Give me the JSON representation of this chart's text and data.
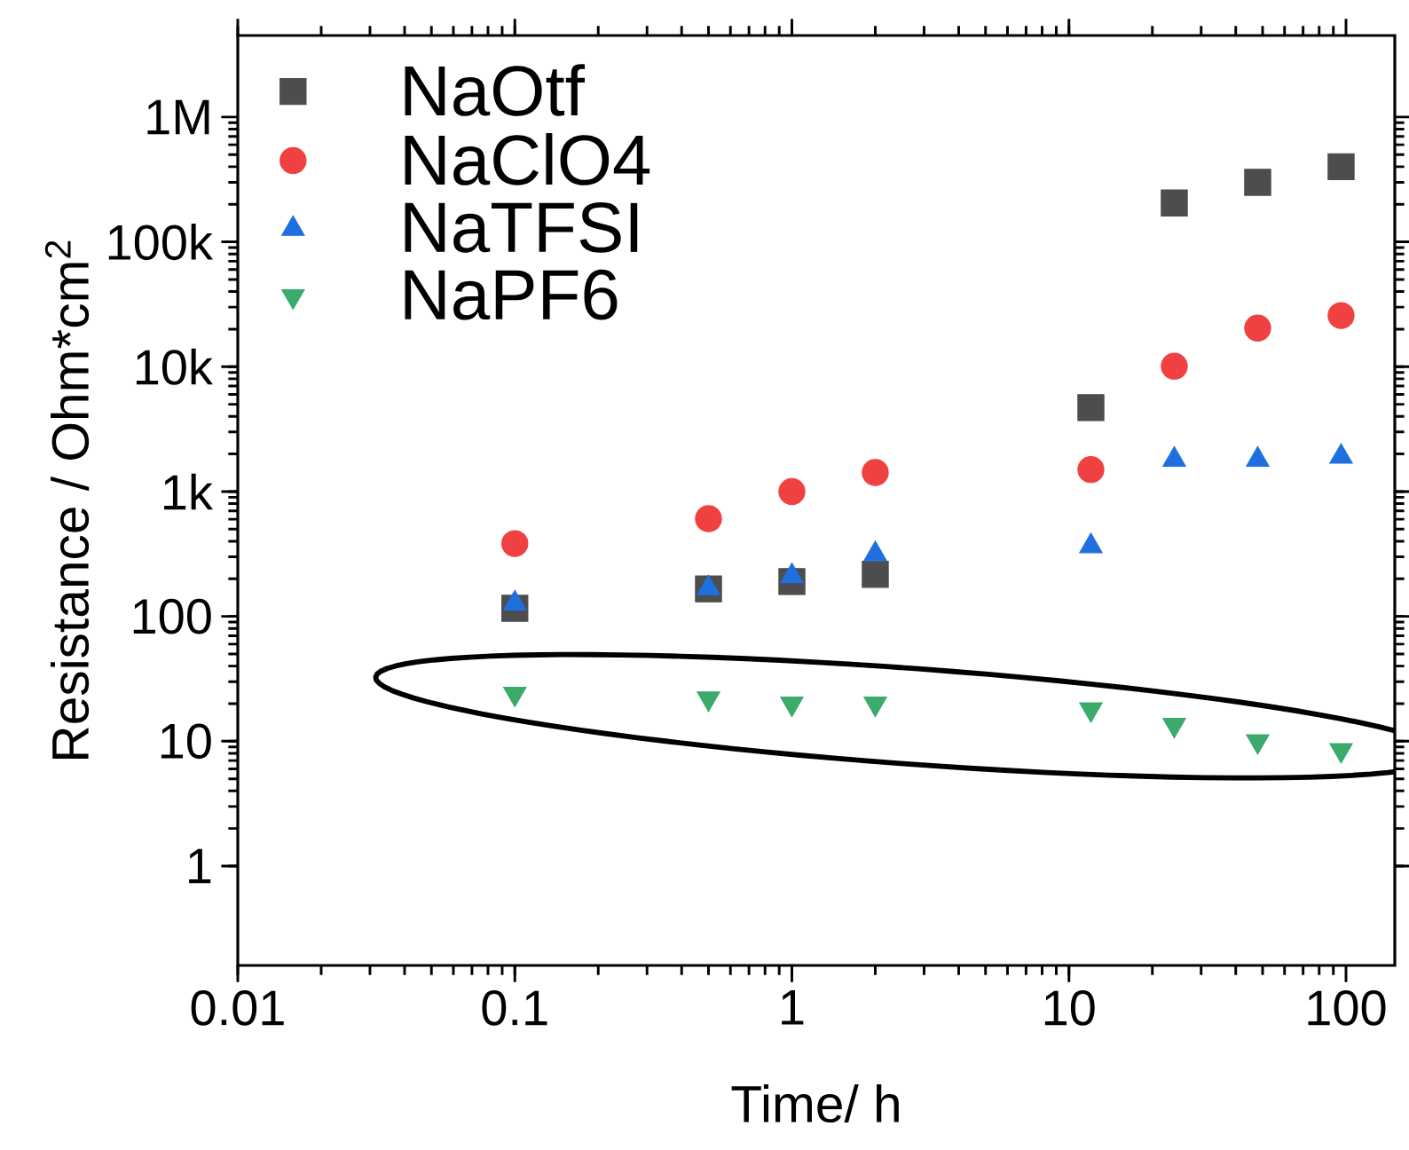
{
  "chart_data": {
    "type": "scatter",
    "xlabel": "Time/ h",
    "ylabel": "Resistance / Ohm*cm$^{2}$",
    "x": [
      0.1,
      0.5,
      1,
      2,
      12,
      24,
      48,
      96
    ],
    "series": [
      {
        "name": "NaOtf",
        "color": "#4d4d4d",
        "marker": "square",
        "values": [
          116,
          166,
          190,
          217,
          4700,
          205000,
          300000,
          400000
        ]
      },
      {
        "name": "NaClO4",
        "color": "#ef4141",
        "marker": "circle",
        "values": [
          383,
          606,
          1000,
          1420,
          1500,
          10100,
          20400,
          25700
        ]
      },
      {
        "name": "NaTFSI",
        "color": "#1f6fdf",
        "marker": "triangle",
        "values": [
          127,
          168,
          210,
          315,
          365,
          1800,
          1800,
          1900
        ]
      },
      {
        "name": "NaPF6",
        "color": "#3aab6b",
        "marker": "triangle-down",
        "values": [
          24,
          22,
          20,
          20,
          18,
          13.5,
          10,
          8.5
        ]
      }
    ],
    "log": "xy",
    "xlim": [
      0.01,
      150
    ],
    "ylim": [
      0.16,
      4500000
    ],
    "xticks": [
      0.01,
      0.1,
      1,
      10,
      100
    ],
    "yticks": [
      1,
      10,
      100,
      {
        "value": 1000,
        "label": "1k"
      },
      {
        "value": 10000,
        "label": "10k"
      },
      {
        "value": 100000,
        "label": "100k"
      },
      {
        "value": 1000000,
        "label": "1M"
      }
    ],
    "grid": false,
    "legend": "top left"
  }
}
